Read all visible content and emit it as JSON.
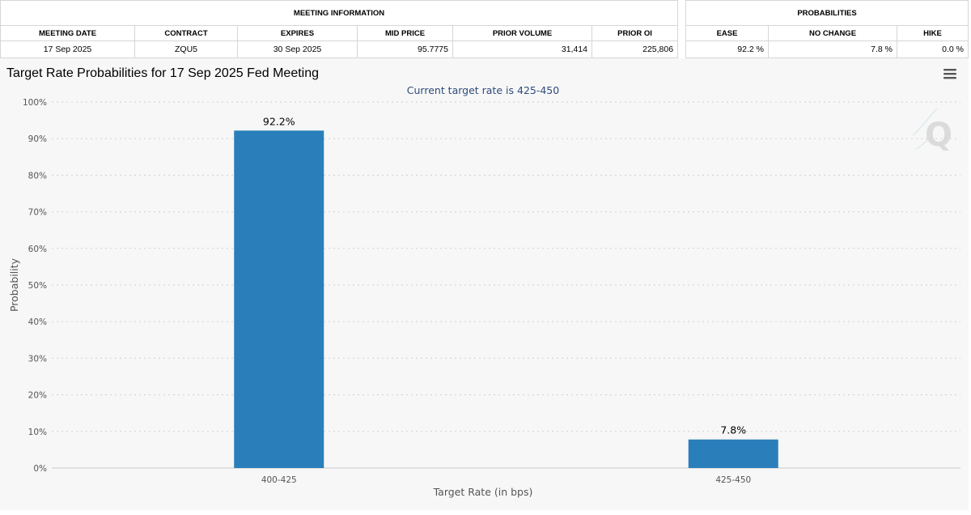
{
  "meeting_info": {
    "group_label": "MEETING INFORMATION",
    "headers": [
      "MEETING DATE",
      "CONTRACT",
      "EXPIRES",
      "MID PRICE",
      "PRIOR VOLUME",
      "PRIOR OI"
    ],
    "row": [
      "17 Sep 2025",
      "ZQU5",
      "30 Sep 2025",
      "95.7775",
      "31,414",
      "225,806"
    ]
  },
  "probabilities": {
    "group_label": "PROBABILITIES",
    "headers": [
      "EASE",
      "NO CHANGE",
      "HIKE"
    ],
    "row": [
      "92.2 %",
      "7.8 %",
      "0.0 %"
    ]
  },
  "icons": {
    "menu": "hamburger-menu-icon",
    "watermark": "q-logo-icon"
  },
  "colors": {
    "bar": "#2a7fba",
    "subtitle": "#2f4b7c",
    "panel_bg": "#f7f7f7"
  },
  "chart_data": {
    "type": "bar",
    "title": "Target Rate Probabilities for 17 Sep 2025 Fed Meeting",
    "subtitle": "Current target rate is 425-450",
    "categories": [
      "400-425",
      "425-450"
    ],
    "values": [
      92.2,
      7.8
    ],
    "data_labels": [
      "92.2%",
      "7.8%"
    ],
    "xlabel": "Target Rate (in bps)",
    "ylabel": "Probability",
    "ylim": [
      0,
      100
    ],
    "yticks": [
      0,
      10,
      20,
      30,
      40,
      50,
      60,
      70,
      80,
      90,
      100
    ],
    "ytick_suffix": "%",
    "grid": true,
    "legend": "none"
  }
}
